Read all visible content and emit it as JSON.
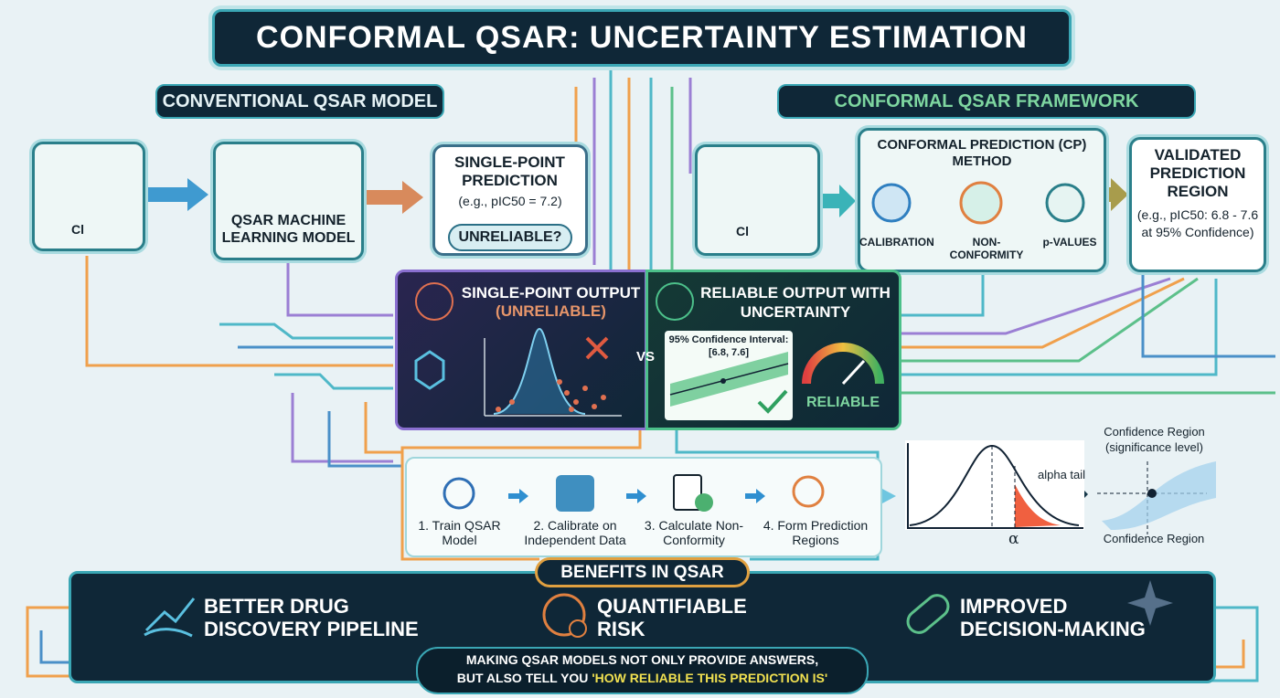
{
  "title": "CONFORMAL QSAR: UNCERTAINTY ESTIMATION",
  "conventional": {
    "heading": "CONVENTIONAL QSAR MODEL",
    "molecule_label": "Cl",
    "model": "QSAR MACHINE LEARNING MODEL",
    "prediction": {
      "title": "SINGLE-POINT PREDICTION",
      "example": "(e.g., pIC50 = 7.2)",
      "flag": "UNRELIABLE?"
    }
  },
  "framework": {
    "heading": "CONFORMAL QSAR FRAMEWORK",
    "molecule_label": "Cl",
    "method": {
      "title": "CONFORMAL PREDICTION (CP) METHOD",
      "steps": [
        "CALIBRATION",
        "NON-CONFORMITY",
        "p-VALUES"
      ]
    },
    "region": {
      "title": "VALIDATED PREDICTION REGION",
      "example": "(e.g., pIC50: 6.8 - 7.6 at 95% Confidence)"
    }
  },
  "comparison": {
    "left": {
      "title": "SINGLE-POINT OUTPUT",
      "subtitle": "(UNRELIABLE)"
    },
    "vs": "VS",
    "right": {
      "title": "RELIABLE OUTPUT WITH UNCERTAINTY",
      "interval_label": "95% Confidence Interval:",
      "interval": "[6.8, 7.6]",
      "badge": "RELIABLE"
    }
  },
  "process": {
    "steps": [
      "1. Train QSAR Model",
      "2. Calibrate on Independent Data",
      "3. Calculate Non-Conformity",
      "4. Form Prediction Regions"
    ]
  },
  "distribution": {
    "label": "alpha tail",
    "axis_symbol": "α"
  },
  "region_plot": {
    "top_label": "Confidence Region (significance level)",
    "bottom_label": "Confidence Region"
  },
  "benefits": {
    "title": "BENEFITS IN QSAR",
    "items": [
      "BETTER DRUG DISCOVERY PIPELINE",
      "QUANTIFIABLE RISK",
      "IMPROVED DECISION-MAKING"
    ],
    "footer": {
      "line1": "MAKING QSAR MODELS NOT ONLY PROVIDE ANSWERS,",
      "line2": "BUT ALSO TELL YOU",
      "highlight": "'HOW RELIABLE THIS PREDICTION IS'"
    }
  }
}
